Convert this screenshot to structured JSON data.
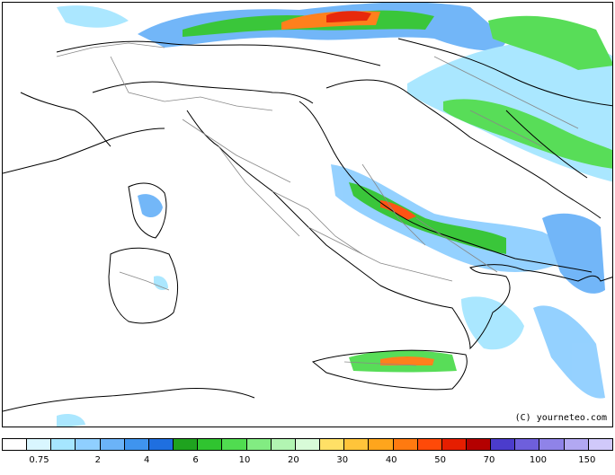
{
  "copyright": "(C) yourneteo.com",
  "legend": {
    "colors": [
      "#ffffff",
      "#d9f6ff",
      "#a6e6ff",
      "#8fcfff",
      "#6bb3f8",
      "#3f94ee",
      "#1f6fe0",
      "#1fa31f",
      "#30c430",
      "#50dc50",
      "#82ec82",
      "#b2f5b2",
      "#d8fbd8",
      "#ffe066",
      "#ffc43a",
      "#ffa51c",
      "#ff7a10",
      "#ff4a08",
      "#e61e00",
      "#b40000",
      "#4b3ccc",
      "#6e5fdc",
      "#8f83e8",
      "#b2a8f2",
      "#d0c9fa"
    ],
    "labels": [
      "0.75",
      "2",
      "4",
      "6",
      "10",
      "20",
      "30",
      "40",
      "50",
      "70",
      "100",
      "150"
    ],
    "label_boundaries": [
      1.6,
      4,
      6,
      8,
      10,
      12,
      14,
      16,
      18,
      20,
      22,
      24
    ]
  }
}
